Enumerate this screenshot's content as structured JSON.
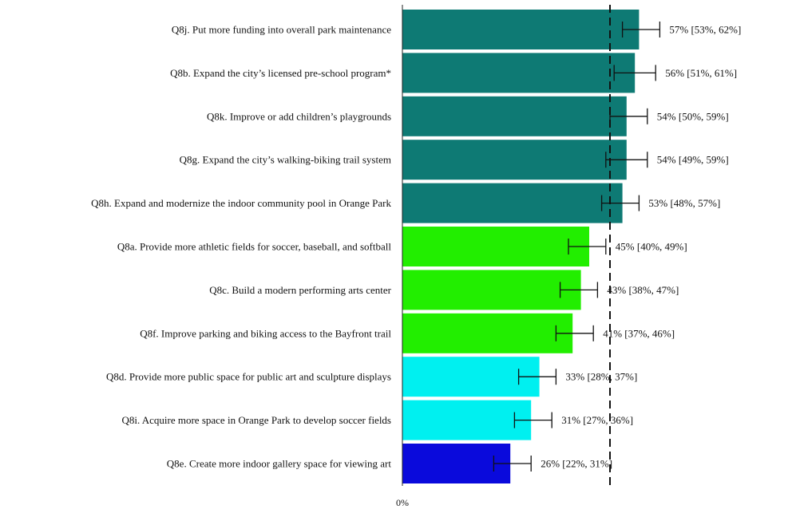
{
  "chart_data": {
    "type": "bar",
    "orientation": "horizontal",
    "xlim": [
      0,
      100
    ],
    "reference_line": 50,
    "x_tick_labels": [
      "0%"
    ],
    "grid": false,
    "categories": [
      "Q8j. Put more funding into overall park maintenance",
      "Q8b. Expand the city’s licensed pre-school program*",
      "Q8k. Improve or add children’s playgrounds",
      "Q8g. Expand the city’s walking-biking trail system",
      "Q8h. Expand and modernize the indoor community pool in Orange Park",
      "Q8a. Provide more athletic fields for soccer, baseball, and softball",
      "Q8c. Build a modern performing arts center",
      "Q8f. Improve parking and biking access to the Bayfront trail",
      "Q8d. Provide more public space for public art and sculpture displays",
      "Q8i. Acquire more space in Orange Park to develop soccer fields",
      "Q8e. Create more indoor gallery space for viewing art"
    ],
    "values": [
      57,
      56,
      54,
      54,
      53,
      45,
      43,
      41,
      33,
      31,
      26
    ],
    "ci_low": [
      53,
      51,
      50,
      49,
      48,
      40,
      38,
      37,
      28,
      27,
      22
    ],
    "ci_high": [
      62,
      61,
      59,
      59,
      57,
      49,
      47,
      46,
      37,
      36,
      31
    ],
    "value_labels": [
      "57%  [53%, 62%]",
      "56%  [51%, 61%]",
      "54%  [50%, 59%]",
      "54%  [49%, 59%]",
      "53%  [48%, 57%]",
      "45%  [40%, 49%]",
      "43%  [38%, 47%]",
      "41%  [37%, 46%]",
      "33%  [28%, 37%]",
      "31%  [27%, 36%]",
      "26%  [22%, 31%]"
    ],
    "colors": [
      "#0e7a74",
      "#0e7a74",
      "#0e7a74",
      "#0e7a74",
      "#0e7a74",
      "#22ee00",
      "#22ee00",
      "#22ee00",
      "#00f0f0",
      "#00f0f0",
      "#0a0adc"
    ]
  }
}
